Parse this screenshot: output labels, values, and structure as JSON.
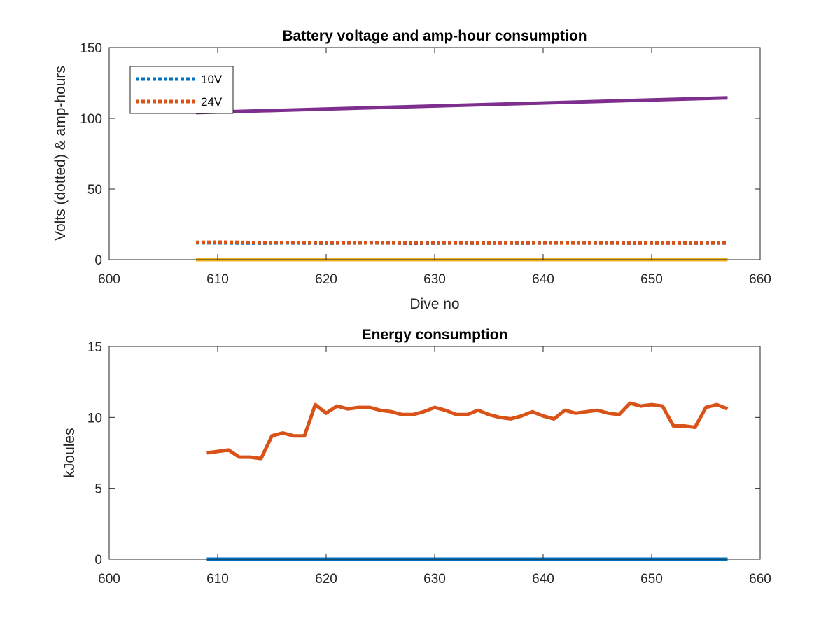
{
  "chart_data": [
    {
      "type": "line",
      "title": "Battery voltage and amp-hour consumption",
      "xlabel": "Dive no",
      "ylabel": "Volts (dotted) & amp-hours",
      "xlim": [
        600,
        660
      ],
      "ylim": [
        0,
        150
      ],
      "xticks": [
        "600",
        "610",
        "620",
        "630",
        "640",
        "650",
        "660"
      ],
      "yticks": [
        "0",
        "50",
        "100",
        "150"
      ],
      "legend": {
        "placement": "top-left",
        "entries": [
          "10V",
          "24V"
        ]
      },
      "series": [
        {
          "name": "10V",
          "style": "dotted",
          "color": "#0072BD",
          "x": [
            608,
            610,
            612,
            614,
            616,
            618,
            620,
            622,
            624,
            626,
            628,
            630,
            632,
            634,
            636,
            638,
            640,
            642,
            644,
            646,
            648,
            650,
            652,
            654,
            656,
            657
          ],
          "y": [
            12.0,
            11.9,
            11.8,
            11.7,
            11.9,
            11.8,
            11.7,
            11.8,
            11.9,
            11.8,
            11.6,
            11.7,
            11.8,
            11.7,
            11.8,
            11.7,
            11.8,
            11.9,
            11.8,
            11.8,
            11.7,
            11.8,
            11.8,
            11.7,
            11.8,
            11.8
          ]
        },
        {
          "name": "24V",
          "style": "dotted",
          "color": "#D95319",
          "x": [
            608,
            610,
            612,
            614,
            616,
            618,
            620,
            622,
            624,
            626,
            628,
            630,
            632,
            634,
            636,
            638,
            640,
            642,
            644,
            646,
            648,
            650,
            652,
            654,
            656,
            657
          ],
          "y": [
            12.3,
            12.4,
            12.3,
            12.0,
            12.1,
            12.0,
            11.9,
            11.9,
            12.0,
            11.9,
            11.8,
            11.9,
            11.9,
            11.8,
            11.8,
            11.9,
            11.9,
            11.8,
            11.9,
            11.9,
            11.8,
            11.8,
            11.8,
            11.8,
            11.9,
            11.9
          ]
        },
        {
          "style": "solid",
          "color": "#EDB120",
          "x": [
            608,
            657
          ],
          "y": [
            0,
            0
          ]
        },
        {
          "style": "solid",
          "color": "#7E2F8E",
          "x": [
            608,
            657
          ],
          "y": [
            104,
            114.5
          ]
        }
      ]
    },
    {
      "type": "line",
      "title": "Energy consumption",
      "xlabel": "",
      "ylabel": "kJoules",
      "xlim": [
        600,
        660
      ],
      "ylim": [
        0,
        15
      ],
      "xticks": [
        "600",
        "610",
        "620",
        "630",
        "640",
        "650",
        "660"
      ],
      "yticks": [
        "0",
        "5",
        "10",
        "15"
      ],
      "series": [
        {
          "style": "solid",
          "color": "#0072BD",
          "x": [
            609,
            657
          ],
          "y": [
            0,
            0
          ]
        },
        {
          "style": "solid",
          "color": "#D95319",
          "x": [
            609,
            610,
            611,
            612,
            613,
            614,
            615,
            616,
            617,
            618,
            619,
            620,
            621,
            622,
            623,
            624,
            625,
            626,
            627,
            628,
            629,
            630,
            631,
            632,
            633,
            634,
            635,
            636,
            637,
            638,
            639,
            640,
            641,
            642,
            643,
            644,
            645,
            646,
            647,
            648,
            649,
            650,
            651,
            652,
            653,
            654,
            655,
            656,
            657
          ],
          "y": [
            7.5,
            7.6,
            7.7,
            7.2,
            7.2,
            7.1,
            8.7,
            8.9,
            8.7,
            8.7,
            10.9,
            10.3,
            10.8,
            10.6,
            10.7,
            10.7,
            10.5,
            10.4,
            10.2,
            10.2,
            10.4,
            10.7,
            10.5,
            10.2,
            10.2,
            10.5,
            10.2,
            10.0,
            9.9,
            10.1,
            10.4,
            10.1,
            9.9,
            10.5,
            10.3,
            10.4,
            10.5,
            10.3,
            10.2,
            11.0,
            10.8,
            10.9,
            10.8,
            9.4,
            9.4,
            9.3,
            10.7,
            10.9,
            10.6
          ]
        }
      ]
    }
  ]
}
